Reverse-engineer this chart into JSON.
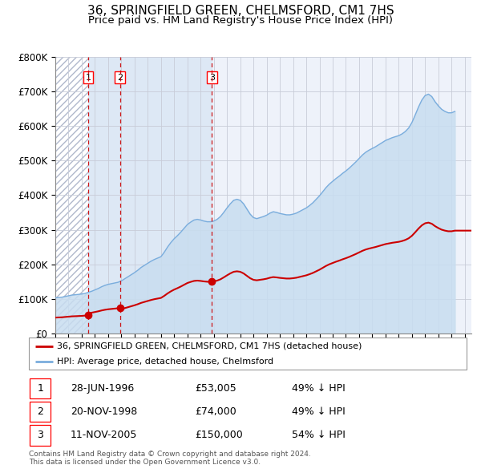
{
  "title": "36, SPRINGFIELD GREEN, CHELMSFORD, CM1 7HS",
  "subtitle": "Price paid vs. HM Land Registry's House Price Index (HPI)",
  "title_fontsize": 11,
  "subtitle_fontsize": 9.5,
  "background_color": "#ffffff",
  "plot_bg_color": "#eef2fa",
  "hatch_color": "#c8cfe0",
  "between_sale_color": "#dde8f5",
  "sale_dates": [
    1996.49,
    1998.89,
    2005.86
  ],
  "sale_prices": [
    53005,
    74000,
    150000
  ],
  "sale_labels": [
    "1",
    "2",
    "3"
  ],
  "legend_sale_label": "36, SPRINGFIELD GREEN, CHELMSFORD, CM1 7HS (detached house)",
  "legend_hpi_label": "HPI: Average price, detached house, Chelmsford",
  "sale_color": "#cc0000",
  "hpi_color": "#7aaddd",
  "hpi_fill_color": "#c8ddf0",
  "dashed_line_color": "#cc0000",
  "table_rows": [
    [
      "1",
      "28-JUN-1996",
      "£53,005",
      "49% ↓ HPI"
    ],
    [
      "2",
      "20-NOV-1998",
      "£74,000",
      "49% ↓ HPI"
    ],
    [
      "3",
      "11-NOV-2005",
      "£150,000",
      "54% ↓ HPI"
    ]
  ],
  "footer_text": "Contains HM Land Registry data © Crown copyright and database right 2024.\nThis data is licensed under the Open Government Licence v3.0.",
  "ylim": [
    0,
    800000
  ],
  "ytick_labels": [
    "£0",
    "£100K",
    "£200K",
    "£300K",
    "£400K",
    "£500K",
    "£600K",
    "£700K",
    "£800K"
  ],
  "ytick_values": [
    0,
    100000,
    200000,
    300000,
    400000,
    500000,
    600000,
    700000,
    800000
  ],
  "hpi_years": [
    1994.0,
    1994.25,
    1994.5,
    1994.75,
    1995.0,
    1995.25,
    1995.5,
    1995.75,
    1996.0,
    1996.25,
    1996.5,
    1996.75,
    1997.0,
    1997.25,
    1997.5,
    1997.75,
    1998.0,
    1998.25,
    1998.5,
    1998.75,
    1999.0,
    1999.25,
    1999.5,
    1999.75,
    2000.0,
    2000.25,
    2000.5,
    2000.75,
    2001.0,
    2001.25,
    2001.5,
    2001.75,
    2002.0,
    2002.25,
    2002.5,
    2002.75,
    2003.0,
    2003.25,
    2003.5,
    2003.75,
    2004.0,
    2004.25,
    2004.5,
    2004.75,
    2005.0,
    2005.25,
    2005.5,
    2005.75,
    2006.0,
    2006.25,
    2006.5,
    2006.75,
    2007.0,
    2007.25,
    2007.5,
    2007.75,
    2008.0,
    2008.25,
    2008.5,
    2008.75,
    2009.0,
    2009.25,
    2009.5,
    2009.75,
    2010.0,
    2010.25,
    2010.5,
    2010.75,
    2011.0,
    2011.25,
    2011.5,
    2011.75,
    2012.0,
    2012.25,
    2012.5,
    2012.75,
    2013.0,
    2013.25,
    2013.5,
    2013.75,
    2014.0,
    2014.25,
    2014.5,
    2014.75,
    2015.0,
    2015.25,
    2015.5,
    2015.75,
    2016.0,
    2016.25,
    2016.5,
    2016.75,
    2017.0,
    2017.25,
    2017.5,
    2017.75,
    2018.0,
    2018.25,
    2018.5,
    2018.75,
    2019.0,
    2019.25,
    2019.5,
    2019.75,
    2020.0,
    2020.25,
    2020.5,
    2020.75,
    2021.0,
    2021.25,
    2021.5,
    2021.75,
    2022.0,
    2022.25,
    2022.5,
    2022.75,
    2023.0,
    2023.25,
    2023.5,
    2023.75,
    2024.0,
    2024.25
  ],
  "hpi_values": [
    103000,
    104000,
    105000,
    107000,
    109000,
    111000,
    112000,
    113000,
    114000,
    116000,
    119000,
    122000,
    126000,
    130000,
    135000,
    139000,
    142000,
    144000,
    146000,
    148000,
    152000,
    158000,
    164000,
    170000,
    176000,
    183000,
    191000,
    197000,
    203000,
    209000,
    214000,
    218000,
    222000,
    235000,
    250000,
    263000,
    274000,
    283000,
    293000,
    304000,
    315000,
    322000,
    328000,
    330000,
    328000,
    325000,
    323000,
    323000,
    325000,
    330000,
    338000,
    350000,
    363000,
    375000,
    385000,
    388000,
    385000,
    375000,
    360000,
    345000,
    335000,
    332000,
    335000,
    338000,
    342000,
    348000,
    352000,
    350000,
    347000,
    345000,
    343000,
    343000,
    345000,
    348000,
    353000,
    358000,
    363000,
    370000,
    378000,
    388000,
    398000,
    410000,
    422000,
    432000,
    440000,
    448000,
    455000,
    463000,
    470000,
    478000,
    487000,
    496000,
    506000,
    516000,
    524000,
    530000,
    535000,
    540000,
    546000,
    552000,
    558000,
    562000,
    566000,
    569000,
    572000,
    577000,
    584000,
    594000,
    610000,
    632000,
    655000,
    675000,
    688000,
    692000,
    685000,
    670000,
    658000,
    648000,
    642000,
    638000,
    638000,
    642000
  ],
  "xlim": [
    1994.0,
    2025.5
  ],
  "xtick_years": [
    1994,
    1995,
    1996,
    1997,
    1998,
    1999,
    2000,
    2001,
    2002,
    2003,
    2004,
    2005,
    2006,
    2007,
    2008,
    2009,
    2010,
    2011,
    2012,
    2013,
    2014,
    2015,
    2016,
    2017,
    2018,
    2019,
    2020,
    2021,
    2022,
    2023,
    2024,
    2025
  ]
}
